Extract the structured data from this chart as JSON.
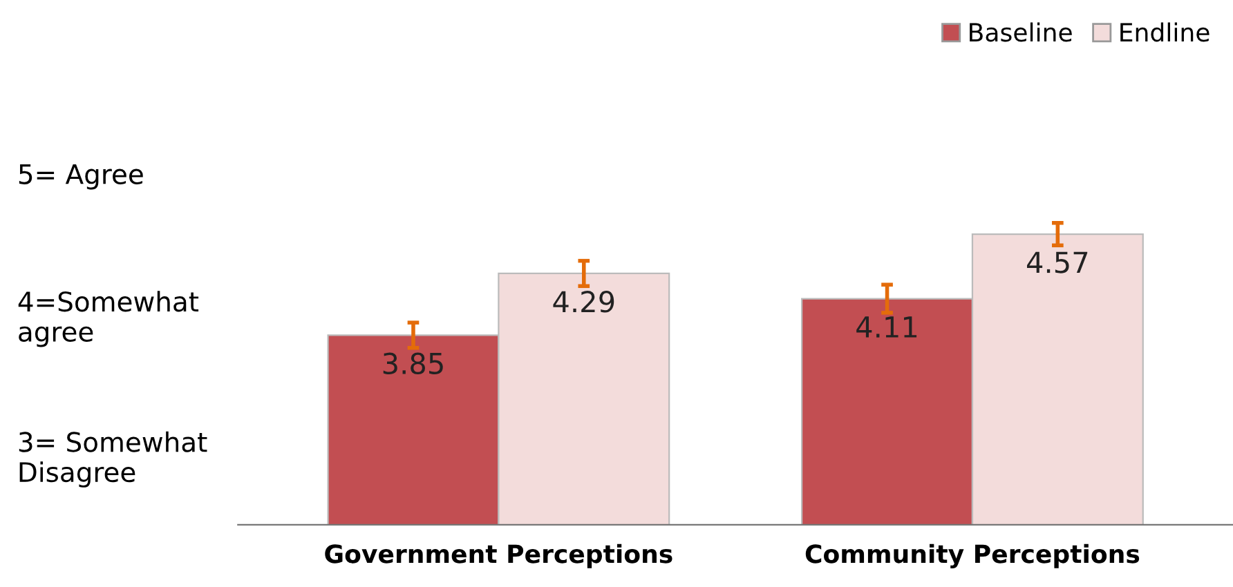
{
  "chart_data": {
    "type": "bar",
    "categories": [
      "Government Perceptions",
      "Community Perceptions"
    ],
    "series": [
      {
        "name": "Baseline",
        "color": "#c24e52",
        "values": [
          3.85,
          4.11
        ],
        "errors": [
          0.09,
          0.1
        ]
      },
      {
        "name": "Endline",
        "color": "#f3dcdb",
        "values": [
          4.29,
          4.57
        ],
        "errors": [
          0.09,
          0.08
        ]
      }
    ],
    "ylim": [
      2.5,
      5
    ],
    "yticks": [
      {
        "value": 5,
        "label": "5= Agree"
      },
      {
        "value": 4,
        "label": "4=Somewhat\nagree"
      },
      {
        "value": 3,
        "label": "3= Somewhat\nDisagree"
      }
    ],
    "data_labels": true,
    "legend": "top right",
    "grid": false
  }
}
